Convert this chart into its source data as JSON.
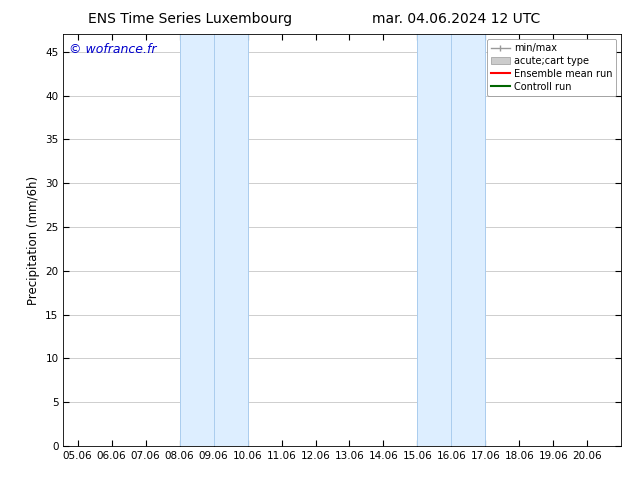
{
  "title_left": "ENS Time Series Luxembourg",
  "title_right": "mar. 04.06.2024 12 UTC",
  "ylabel": "Precipitation (mm/6h)",
  "watermark": "© wofrance.fr",
  "watermark_color": "#0000cc",
  "xlim_start": 4.58,
  "xlim_end": 21.0,
  "ylim_min": 0,
  "ylim_max": 47,
  "yticks": [
    0,
    5,
    10,
    15,
    20,
    25,
    30,
    35,
    40,
    45
  ],
  "xtick_labels": [
    "05.06",
    "06.06",
    "07.06",
    "08.06",
    "09.06",
    "10.06",
    "11.06",
    "12.06",
    "13.06",
    "14.06",
    "15.06",
    "16.06",
    "17.06",
    "18.06",
    "19.06",
    "20.06"
  ],
  "xtick_positions": [
    5,
    6,
    7,
    8,
    9,
    10,
    11,
    12,
    13,
    14,
    15,
    16,
    17,
    18,
    19,
    20
  ],
  "shaded_bands": [
    {
      "xmin": 8.0,
      "xmax": 10.0,
      "color": "#ddeeff"
    },
    {
      "xmin": 15.0,
      "xmax": 17.0,
      "color": "#ddeeff"
    }
  ],
  "vertical_lines": [
    8.0,
    9.0,
    10.0,
    15.0,
    16.0,
    17.0
  ],
  "vline_color": "#aaccee",
  "background_color": "#ffffff",
  "grid_color": "#bbbbbb",
  "legend_entries": [
    {
      "label": "min/max",
      "color": "#999999",
      "style": "minmax"
    },
    {
      "label": "acute;cart type",
      "color": "#cccccc",
      "style": "box"
    },
    {
      "label": "Ensemble mean run",
      "color": "#ff0000",
      "style": "line"
    },
    {
      "label": "Controll run",
      "color": "#006600",
      "style": "line"
    }
  ],
  "tick_fontsize": 7.5,
  "label_fontsize": 8.5,
  "title_fontsize": 10,
  "watermark_fontsize": 9
}
